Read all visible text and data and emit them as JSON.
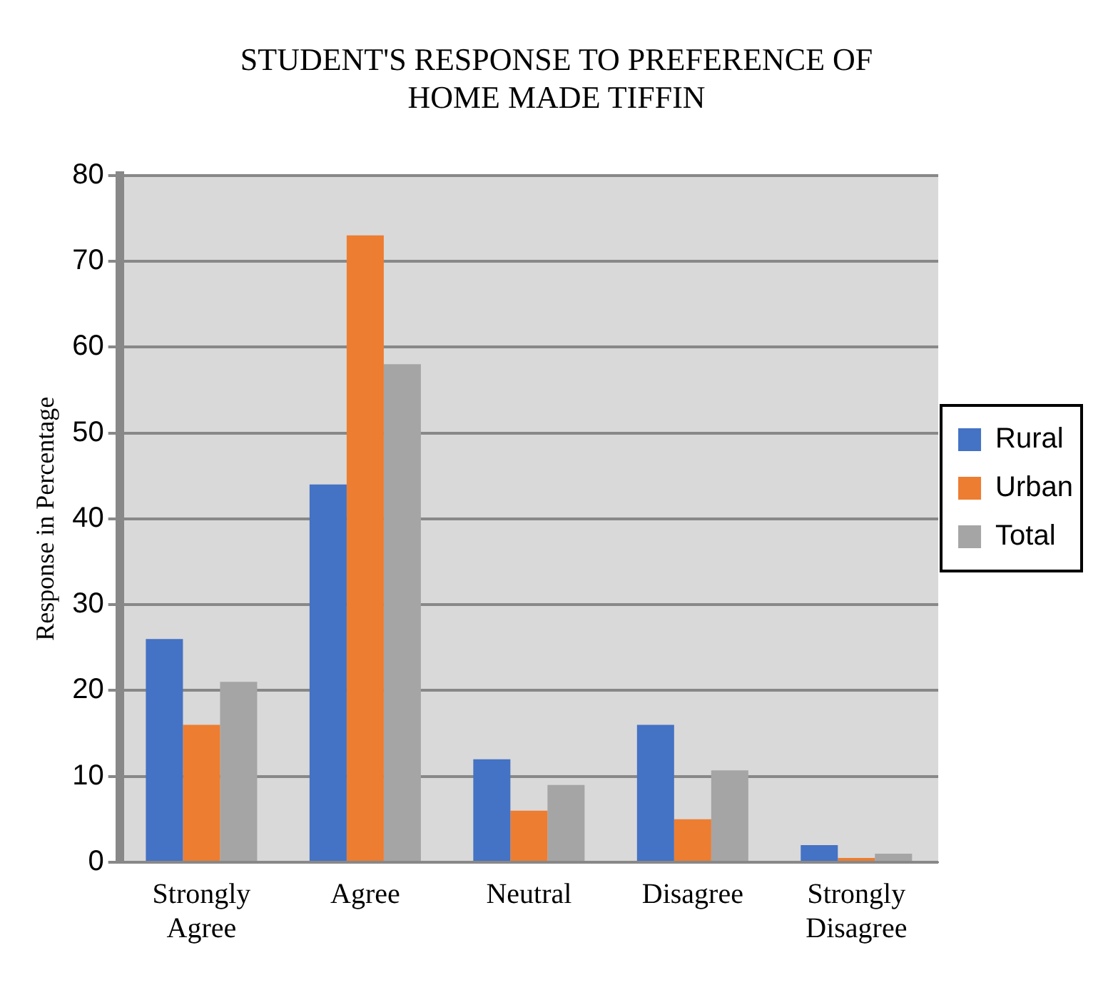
{
  "chart_data": {
    "type": "bar",
    "title": "STUDENT'S RESPONSE TO PREFERENCE OF HOME MADE TIFFIN",
    "ylabel": "Response in Percentage",
    "categories": [
      "Strongly Agree",
      "Agree",
      "Neutral",
      "Disagree",
      "Strongly Disagree"
    ],
    "series": [
      {
        "name": "Rural",
        "color": "#4472c4",
        "values": [
          26,
          44,
          12,
          16,
          2
        ]
      },
      {
        "name": "Urban",
        "color": "#ed7d31",
        "values": [
          16,
          73,
          6,
          5,
          0.5
        ]
      },
      {
        "name": "Total",
        "color": "#a5a5a5",
        "values": [
          21,
          58,
          9,
          10.7,
          1
        ]
      }
    ],
    "ylim": [
      0,
      80
    ],
    "yticks": [
      0,
      10,
      20,
      30,
      40,
      50,
      60,
      70,
      80
    ],
    "grid": "y",
    "legend": "right"
  }
}
